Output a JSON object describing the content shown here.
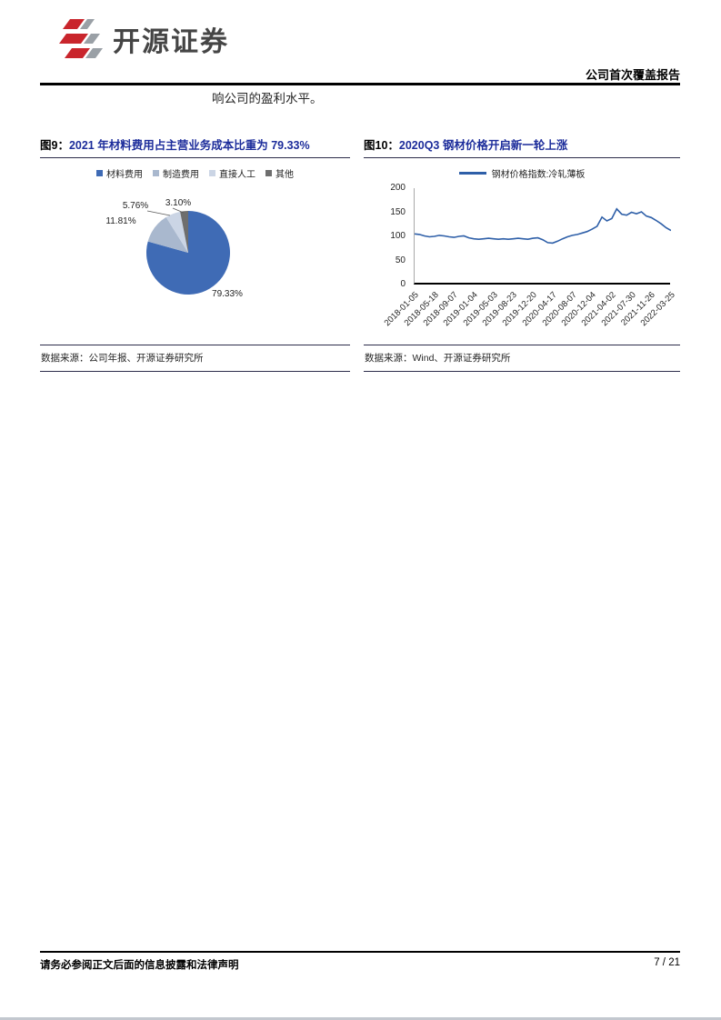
{
  "header": {
    "brand_name": "开源证券",
    "report_type": "公司首次覆盖报告"
  },
  "body": {
    "paragraph_tail": "响公司的盈利水平。"
  },
  "figure9": {
    "label": "图9：",
    "title": "2021 年材料费用占主营业务成本比重为 79.33%",
    "source": "数据来源：公司年报、开源证券研究所",
    "slice_labels": [
      "79.33%",
      "11.81%",
      "5.76%",
      "3.10%"
    ]
  },
  "figure10": {
    "label": "图10：",
    "title": "2020Q3 钢材价格开启新一轮上涨",
    "source": "数据来源：Wind、开源证券研究所"
  },
  "footer": {
    "disclaimer": "请务必参阅正文后面的信息披露和法律声明",
    "page_number": "7 / 21"
  },
  "chart_data": [
    {
      "type": "pie",
      "title": "2021 年材料费用占主营业务成本比重为 79.33%",
      "labels": [
        "材料费用",
        "制造费用",
        "直接人工",
        "其他"
      ],
      "values": [
        79.33,
        11.81,
        5.76,
        3.1
      ],
      "colors": [
        "#3F6BB5",
        "#A9B8CE",
        "#CBD5E5",
        "#6E6E6E"
      ],
      "legend_position": "top",
      "start_angle_deg": -90,
      "direction": "clockwise"
    },
    {
      "type": "line",
      "title": "2020Q3 钢材价格开启新一轮上涨",
      "series": [
        {
          "name": "钢材价格指数:冷轧薄板",
          "color": "#2E5FA8",
          "values": [
            105,
            104,
            101,
            99,
            100,
            102,
            101,
            99,
            98,
            100,
            101,
            97,
            95,
            94,
            95,
            96,
            95,
            94,
            95,
            94,
            95,
            96,
            95,
            94,
            96,
            97,
            93,
            87,
            86,
            90,
            95,
            99,
            102,
            104,
            107,
            110,
            115,
            121,
            140,
            132,
            137,
            157,
            146,
            144,
            150,
            147,
            151,
            142,
            139,
            133,
            126,
            118,
            112
          ]
        }
      ],
      "x_tick_labels": [
        "2018-01-05",
        "2018-05-18",
        "2018-09-07",
        "2019-01-04",
        "2019-05-03",
        "2019-08-23",
        "2019-12-20",
        "2020-04-17",
        "2020-08-07",
        "2020-12-04",
        "2021-04-02",
        "2021-07-30",
        "2021-11-26",
        "2022-03-25"
      ],
      "ylim": [
        0,
        200
      ],
      "y_ticks": [
        0,
        50,
        100,
        150,
        200
      ],
      "grid": false,
      "legend_position": "top"
    }
  ]
}
